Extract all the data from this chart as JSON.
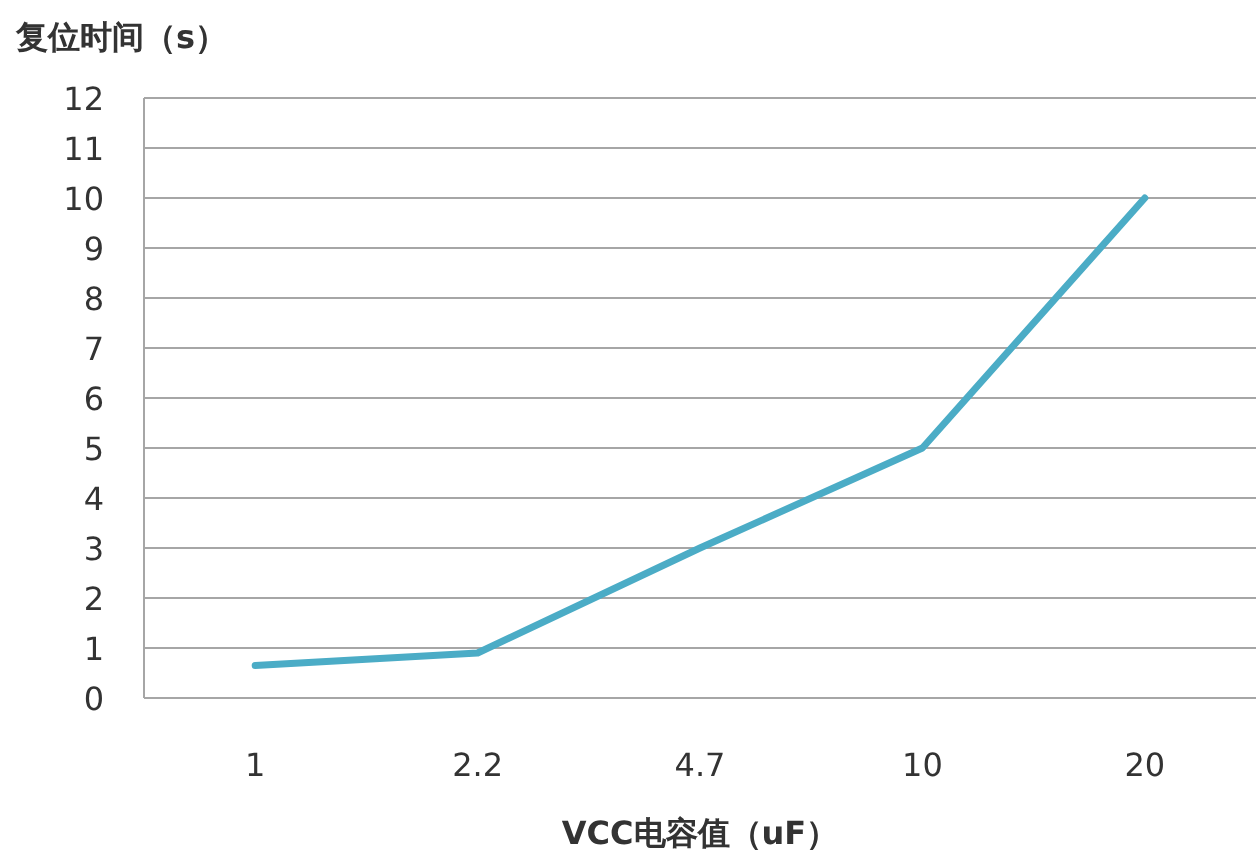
{
  "chart_data": {
    "type": "line",
    "ylabel": "复位时间（s）",
    "xlabel": "VCC电容值（uF）",
    "categories": [
      "1",
      "2.2",
      "4.7",
      "10",
      "20"
    ],
    "series": [
      {
        "color": "#4bacc6",
        "values": [
          0.65,
          0.9,
          3,
          5,
          10
        ]
      }
    ],
    "ylim": [
      0,
      12
    ],
    "yticks": [
      0,
      1,
      2,
      3,
      4,
      5,
      6,
      7,
      8,
      9,
      10,
      11,
      12
    ],
    "grid": "y",
    "marker": "none",
    "line_style": "solid"
  }
}
